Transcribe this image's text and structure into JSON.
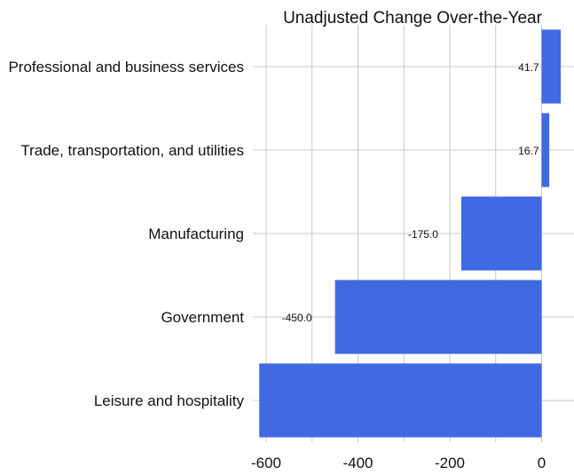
{
  "chart_data": {
    "type": "bar",
    "orientation": "horizontal",
    "title": "Unadjusted Change Over-the-Year",
    "xlabel": "",
    "ylabel": "",
    "categories": [
      "Professional and business services",
      "Trade, transportation, and utilities",
      "Manufacturing",
      "Government",
      "Leisure and hospitality"
    ],
    "values": [
      41.7,
      16.7,
      -175.0,
      -450.0,
      -615.0
    ],
    "data_labels": [
      "41.7",
      "16.7",
      "-175.0",
      "-450.0",
      ""
    ],
    "xlim": [
      -620,
      70
    ],
    "xticks": [
      -600,
      -400,
      -200,
      0
    ],
    "xtick_labels": [
      "-600",
      "-400",
      "-200",
      "0"
    ],
    "grid": true,
    "bar_color": "#4169e1",
    "grid_color": "#c8c8c8"
  }
}
